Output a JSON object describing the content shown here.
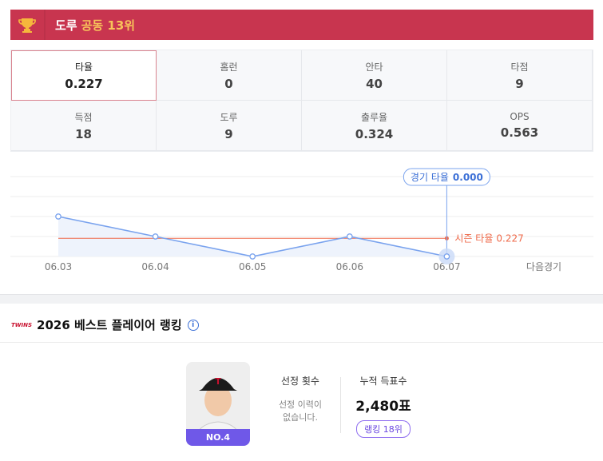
{
  "banner": {
    "label": "도루",
    "rank": "공동 13위"
  },
  "stats": [
    {
      "label": "타율",
      "value": 0.227
    },
    {
      "label": "홈런",
      "value": 0
    },
    {
      "label": "안타",
      "value": 40
    },
    {
      "label": "타점",
      "value": 9
    },
    {
      "label": "득점",
      "value": 18
    },
    {
      "label": "도루",
      "value": 9
    },
    {
      "label": "출루율",
      "value": 0.324
    },
    {
      "label": "OPS",
      "value": 0.563
    }
  ],
  "chart_data": {
    "type": "line",
    "categories": [
      "06.03",
      "06.04",
      "06.05",
      "06.06",
      "06.07",
      "다음경기"
    ],
    "series": [
      {
        "name": "경기 타율",
        "color": "#7aa3ee",
        "values": [
          0.5,
          0.25,
          0,
          0.25,
          0,
          null
        ],
        "value_labels": [
          null,
          null,
          null,
          null,
          "0.000",
          null
        ]
      }
    ],
    "season": {
      "name": "시즌 타율",
      "value": 0.227,
      "color": "#ef6a4a"
    },
    "ylim": [
      0,
      1
    ],
    "yticks": [
      0,
      0.25,
      0.5,
      0.75,
      1
    ],
    "grid": true
  },
  "ranking": {
    "logo": "TWINS",
    "title": "2026 베스트 플레이어 랭킹",
    "badge": "NO.4",
    "count_label": "선정 횟수",
    "count_text": [
      "선정 이력이",
      "없습니다."
    ],
    "votes_label": "누적 득표수",
    "votes": "2,480표",
    "rank": "랭킹 18위"
  }
}
